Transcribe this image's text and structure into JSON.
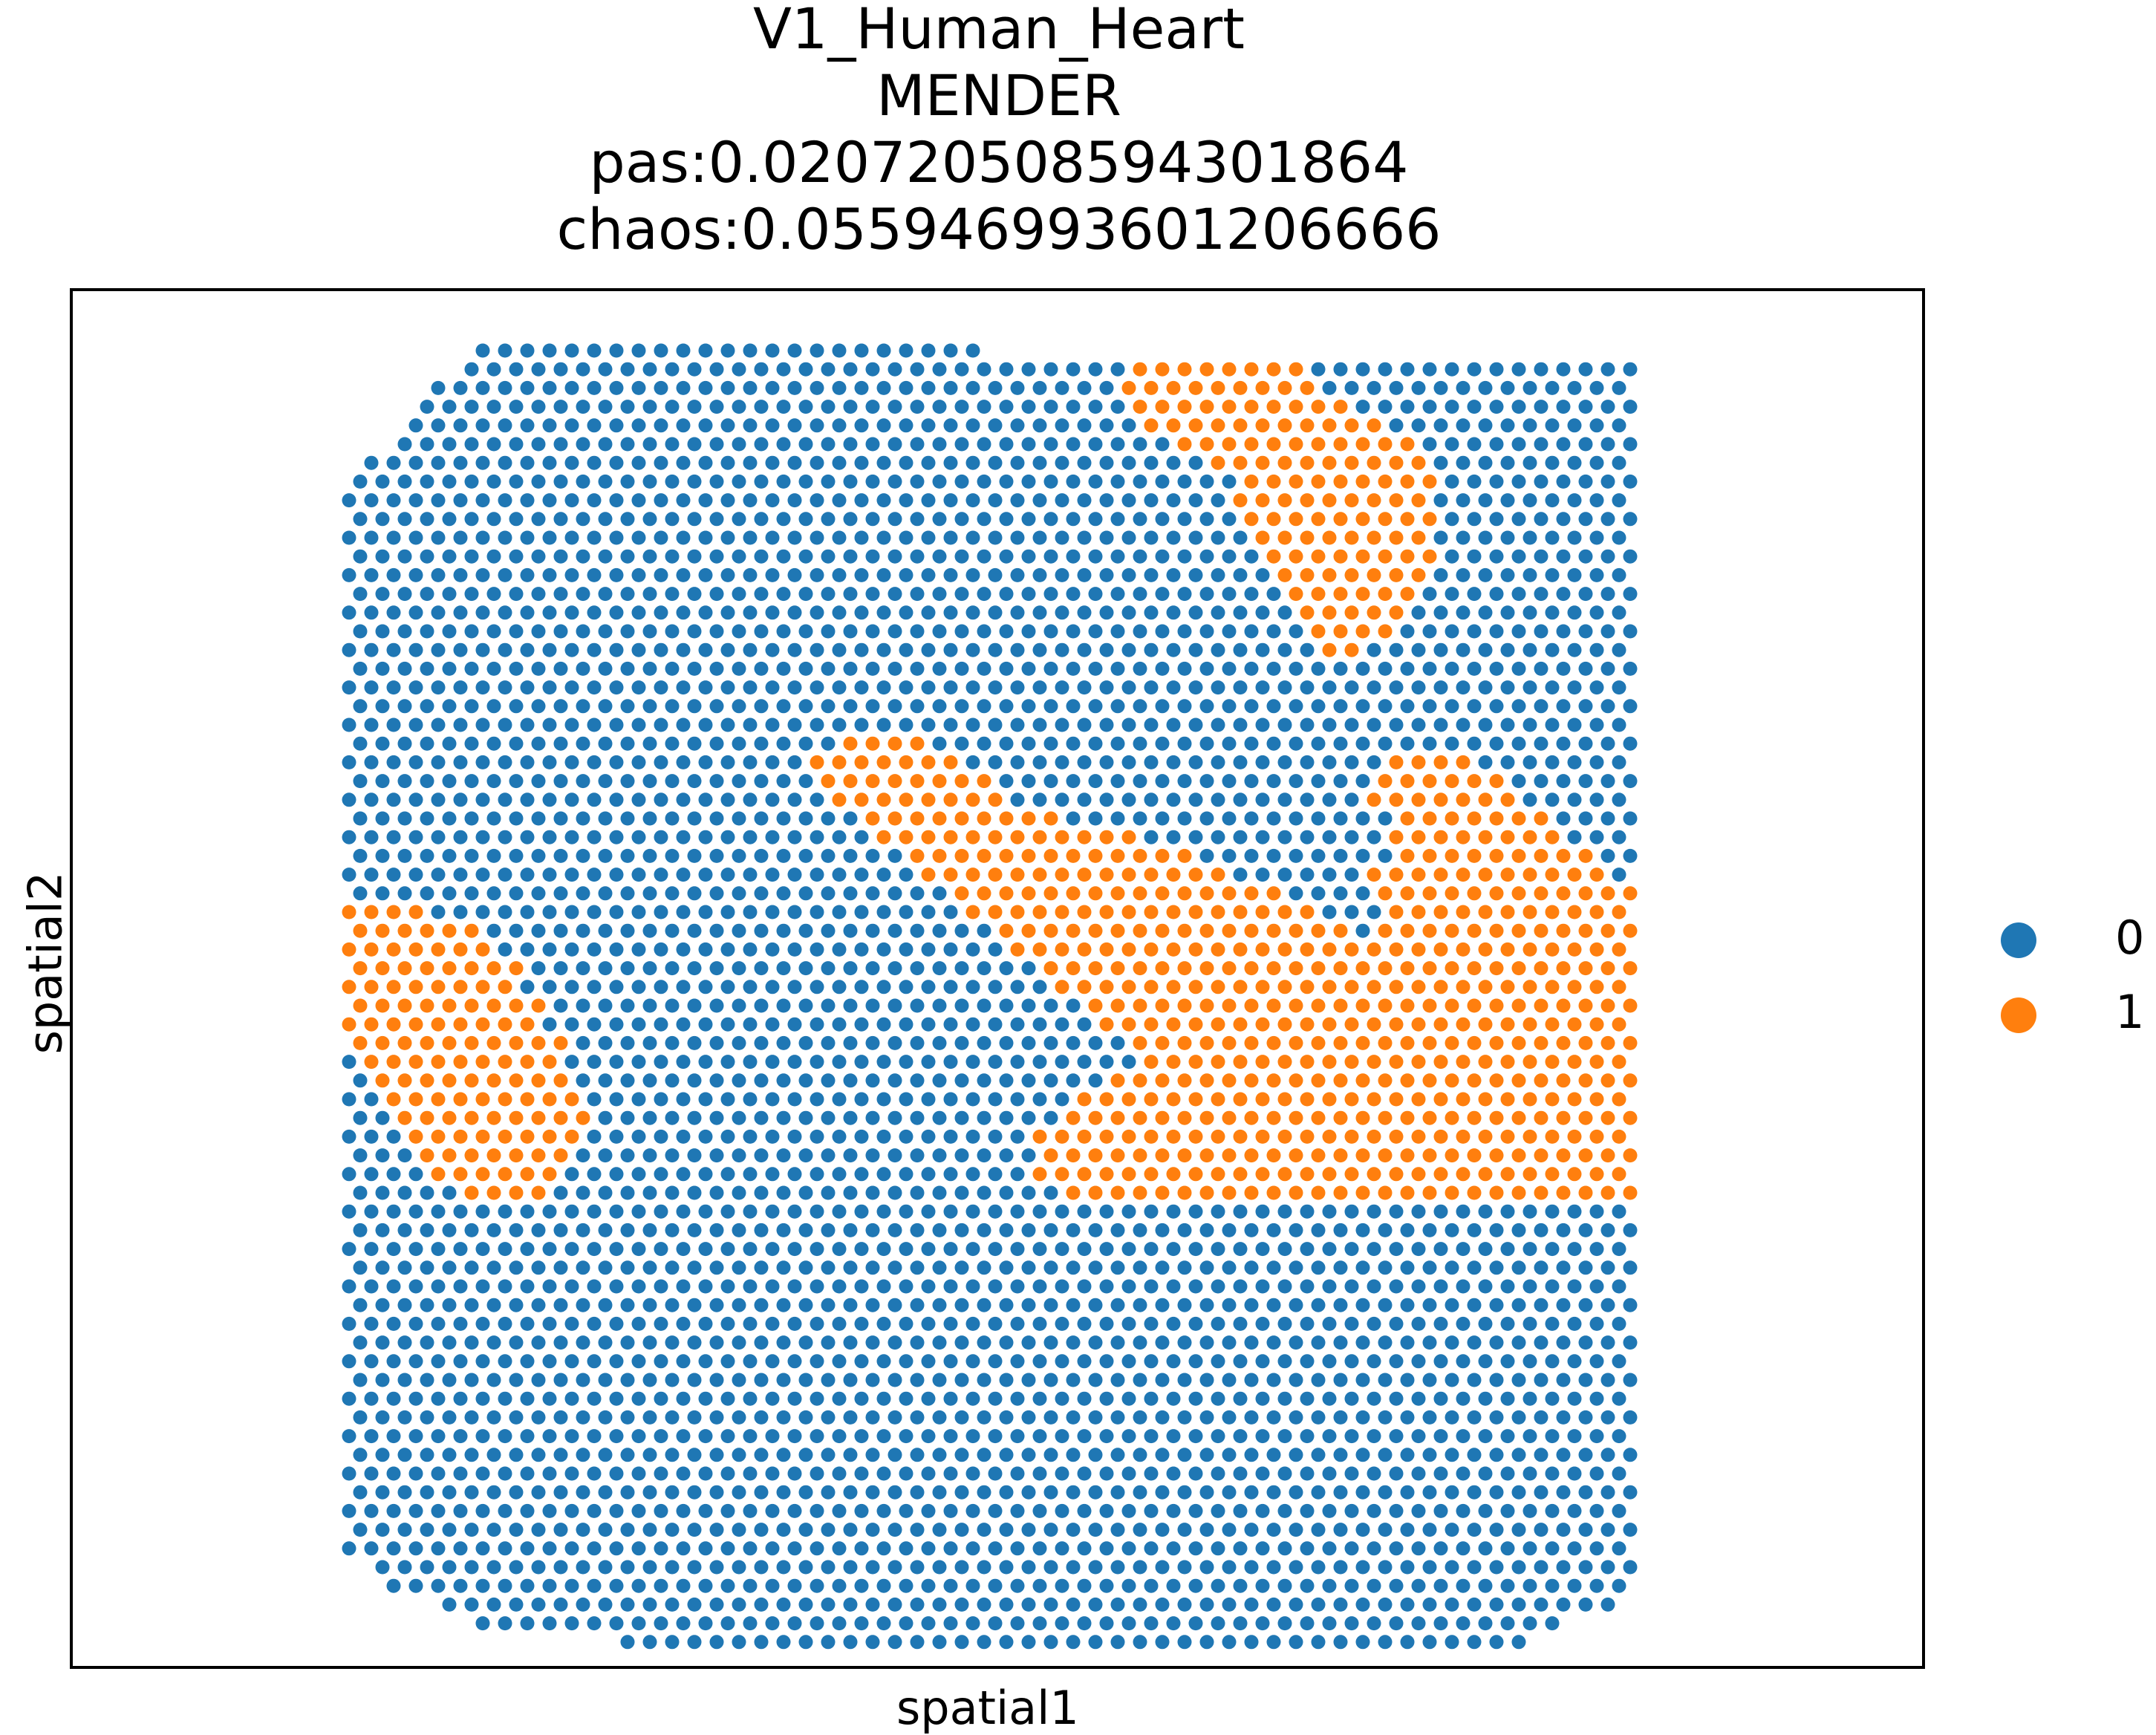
{
  "chart_data": {
    "type": "scatter",
    "title": [
      "V1_Human_Heart",
      "MENDER",
      "pas:0.020720508594301864",
      "chaos:0.055946993601206666"
    ],
    "xlabel": "spatial1",
    "ylabel": "spatial2",
    "xticks": [],
    "yticks": [],
    "grid": false,
    "legend": {
      "placement": "right",
      "entries": [
        {
          "label": "0",
          "color": "#1f77b4"
        },
        {
          "label": "1",
          "color": "#ff7f0e"
        }
      ]
    },
    "grid_spec": {
      "note": "Visium-style hexagonal spot array; row 0 = top. Spots listed per row as [start_col, end_col] ranges, cluster ranges relative to same column grid.",
      "rows": 70,
      "cols": 58
    },
    "series": [
      {
        "name": "0",
        "color": "#1f77b4"
      },
      {
        "name": "1",
        "color": "#ff7f0e"
      }
    ],
    "tissue_rows": [
      [
        [
          6,
          28
        ]
      ],
      [
        [
          5,
          57
        ]
      ],
      [
        [
          4,
          57
        ]
      ],
      [
        [
          3,
          57
        ]
      ],
      [
        [
          3,
          57
        ]
      ],
      [
        [
          2,
          57
        ]
      ],
      [
        [
          1,
          57
        ]
      ],
      [
        [
          0,
          57
        ]
      ],
      [
        [
          0,
          57
        ]
      ],
      [
        [
          0,
          57
        ]
      ],
      [
        [
          0,
          57
        ]
      ],
      [
        [
          0,
          57
        ]
      ],
      [
        [
          0,
          57
        ]
      ],
      [
        [
          0,
          57
        ]
      ],
      [
        [
          0,
          57
        ]
      ],
      [
        [
          0,
          57
        ]
      ],
      [
        [
          0,
          57
        ]
      ],
      [
        [
          0,
          57
        ]
      ],
      [
        [
          0,
          57
        ]
      ],
      [
        [
          0,
          57
        ]
      ],
      [
        [
          0,
          57
        ]
      ],
      [
        [
          0,
          57
        ]
      ],
      [
        [
          0,
          57
        ]
      ],
      [
        [
          0,
          57
        ]
      ],
      [
        [
          0,
          57
        ]
      ],
      [
        [
          0,
          57
        ]
      ],
      [
        [
          0,
          57
        ]
      ],
      [
        [
          0,
          57
        ]
      ],
      [
        [
          0,
          57
        ]
      ],
      [
        [
          0,
          57
        ]
      ],
      [
        [
          0,
          57
        ]
      ],
      [
        [
          0,
          57
        ]
      ],
      [
        [
          0,
          57
        ]
      ],
      [
        [
          0,
          57
        ]
      ],
      [
        [
          0,
          57
        ]
      ],
      [
        [
          0,
          57
        ]
      ],
      [
        [
          0,
          57
        ]
      ],
      [
        [
          0,
          57
        ]
      ],
      [
        [
          0,
          57
        ]
      ],
      [
        [
          0,
          57
        ]
      ],
      [
        [
          0,
          57
        ]
      ],
      [
        [
          0,
          57
        ]
      ],
      [
        [
          0,
          57
        ]
      ],
      [
        [
          0,
          57
        ]
      ],
      [
        [
          0,
          57
        ]
      ],
      [
        [
          0,
          57
        ]
      ],
      [
        [
          0,
          57
        ]
      ],
      [
        [
          0,
          57
        ]
      ],
      [
        [
          0,
          57
        ]
      ],
      [
        [
          0,
          57
        ]
      ],
      [
        [
          0,
          57
        ]
      ],
      [
        [
          0,
          57
        ]
      ],
      [
        [
          0,
          57
        ]
      ],
      [
        [
          0,
          57
        ]
      ],
      [
        [
          0,
          57
        ]
      ],
      [
        [
          0,
          57
        ]
      ],
      [
        [
          0,
          57
        ]
      ],
      [
        [
          0,
          57
        ]
      ],
      [
        [
          0,
          57
        ]
      ],
      [
        [
          0,
          57
        ]
      ],
      [
        [
          0,
          57
        ]
      ],
      [
        [
          0,
          57
        ]
      ],
      [
        [
          0,
          57
        ]
      ],
      [
        [
          0,
          57
        ]
      ],
      [
        [
          0,
          57
        ]
      ],
      [
        [
          1,
          57
        ]
      ],
      [
        [
          2,
          57
        ]
      ],
      [
        [
          4,
          56
        ]
      ],
      [
        [
          6,
          54
        ]
      ],
      [
        [
          12,
          52
        ]
      ]
    ],
    "cluster1_rows": [
      [
        [
          35,
          42
        ]
      ],
      [
        [
          35,
          42
        ]
      ],
      [
        [
          35,
          43
        ]
      ],
      [
        [
          35,
          44
        ]
      ],
      [
        [
          36,
          46
        ]
      ],
      [
        [
          37,
          47
        ]
      ],
      [
        [
          39,
          48
        ]
      ],
      [
        [
          40,
          48
        ]
      ],
      [
        [
          40,
          48
        ]
      ],
      [
        [
          40,
          48
        ]
      ],
      [
        [
          41,
          48
        ]
      ],
      [
        [
          41,
          48
        ]
      ],
      [
        [
          42,
          48
        ]
      ],
      [
        [
          42,
          47
        ]
      ],
      [
        [
          43,
          47
        ]
      ],
      [
        [
          43,
          46
        ]
      ],
      [
        [
          44,
          45
        ]
      ],
      [],
      [],
      [],
      [],
      [
        [
          22,
          25
        ]
      ],
      [
        [
          21,
          27
        ],
        [
          47,
          50
        ]
      ],
      [
        [
          21,
          28
        ],
        [
          46,
          51
        ]
      ],
      [
        [
          22,
          29
        ],
        [
          46,
          52
        ]
      ],
      [
        [
          23,
          31
        ],
        [
          47,
          53
        ]
      ],
      [
        [
          24,
          35
        ],
        [
          47,
          54
        ]
      ],
      [
        [
          25,
          37
        ],
        [
          47,
          55
        ]
      ],
      [
        [
          26,
          39
        ],
        [
          46,
          56
        ]
      ],
      [
        [
          27,
          41
        ],
        [
          46,
          57
        ]
      ],
      [
        [
          0,
          3
        ],
        [
          28,
          43
        ],
        [
          47,
          57
        ]
      ],
      [
        [
          0,
          5
        ],
        [
          29,
          44
        ],
        [
          46,
          57
        ]
      ],
      [
        [
          0,
          6
        ],
        [
          30,
          46
        ],
        [
          45,
          57
        ]
      ],
      [
        [
          0,
          7
        ],
        [
          31,
          57
        ]
      ],
      [
        [
          0,
          7
        ],
        [
          32,
          57
        ]
      ],
      [
        [
          0,
          8
        ],
        [
          33,
          57
        ]
      ],
      [
        [
          0,
          8
        ],
        [
          34,
          57
        ]
      ],
      [
        [
          0,
          9
        ],
        [
          35,
          57
        ]
      ],
      [
        [
          1,
          9
        ],
        [
          36,
          57
        ]
      ],
      [
        [
          1,
          9
        ],
        [
          34,
          57
        ]
      ],
      [
        [
          2,
          10
        ],
        [
          33,
          57
        ]
      ],
      [
        [
          2,
          10
        ],
        [
          32,
          57
        ]
      ],
      [
        [
          3,
          10
        ],
        [
          31,
          57
        ]
      ],
      [
        [
          3,
          9
        ],
        [
          31,
          57
        ]
      ],
      [
        [
          4,
          9
        ],
        [
          31,
          57
        ]
      ],
      [
        [
          5,
          8
        ],
        [
          32,
          57
        ]
      ],
      [],
      [],
      [],
      [],
      [],
      [],
      [],
      [],
      [],
      [],
      [],
      [],
      [],
      [],
      [],
      [],
      [],
      [],
      [],
      [],
      [],
      [],
      [],
      []
    ]
  }
}
